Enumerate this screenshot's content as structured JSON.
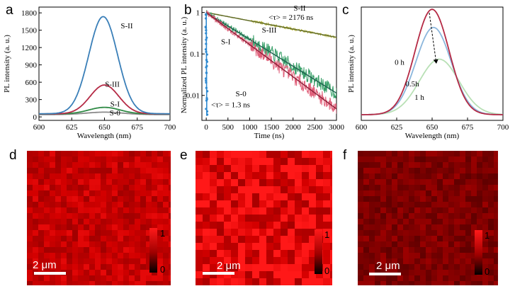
{
  "chart_data": [
    {
      "panel": "a",
      "type": "line",
      "xlabel": "Wavelength (nm)",
      "ylabel": "PL intensity (a. u.)",
      "xlim": [
        600,
        700
      ],
      "ylim": [
        -60,
        1900
      ],
      "xticks": [
        600,
        625,
        650,
        675,
        700
      ],
      "yticks": [
        0,
        300,
        600,
        900,
        1200,
        1500,
        1800
      ],
      "series": [
        {
          "name": "S-II",
          "color": "#3a7fb8",
          "peak_x": 649,
          "peak_y": 1680,
          "sigma": 11,
          "baseline": 55
        },
        {
          "name": "S-III",
          "color": "#b52a45",
          "peak_x": 650,
          "peak_y": 500,
          "sigma": 11,
          "baseline": 52
        },
        {
          "name": "S-I",
          "color": "#2f8a45",
          "peak_x": 650,
          "peak_y": 115,
          "sigma": 12,
          "baseline": 50
        },
        {
          "name": "S-0",
          "color": "#8a8a8a",
          "peak_x": 650,
          "peak_y": 42,
          "sigma": 14,
          "baseline": 40
        }
      ],
      "labels": [
        {
          "text": "S-II",
          "x": 667,
          "y": 1530
        },
        {
          "text": "S-III",
          "x": 656,
          "y": 520
        },
        {
          "text": "S-I",
          "x": 658,
          "y": 180
        },
        {
          "text": "S-0",
          "x": 658,
          "y": 25
        }
      ]
    },
    {
      "panel": "b",
      "type": "line",
      "xlabel": "Time (ns)",
      "ylabel": "Normalized PL intensity (a. u.)",
      "xlim": [
        -100,
        3000
      ],
      "ylim": [
        0.0025,
        1.35
      ],
      "yscale": "log",
      "xticks": [
        0,
        500,
        1000,
        1500,
        2000,
        2500,
        3000
      ],
      "yticks": [
        1,
        0.1,
        0.01
      ],
      "ytick_labels": [
        "1",
        "0.1",
        "0.01"
      ],
      "series": [
        {
          "name": "S-II",
          "color": "#b3b030",
          "fit_color": "#5e6a2a",
          "tau_ns": 2176
        },
        {
          "name": "S-III",
          "color": "#3aa06a",
          "fit_color": "#1e5f4e",
          "tau_ns": 670
        },
        {
          "name": "S-I",
          "color": "#e0607a",
          "fit_color": "#8a1e36",
          "tau_ns": 560
        },
        {
          "name": "S-0",
          "color": "#2f8ad0",
          "fit_color": "#1d4f86",
          "tau_ns": 1.3
        }
      ],
      "labels": [
        {
          "text": "S-II",
          "x": 2150,
          "y": 1.1
        },
        {
          "text": "S-III",
          "x": 1450,
          "y": 0.33
        },
        {
          "text": "S-I",
          "x": 450,
          "y": 0.17
        },
        {
          "text": "S-0",
          "x": 800,
          "y": 0.0095
        }
      ],
      "annotations": [
        {
          "text": "<τ> = 2176 ns",
          "x": 1950,
          "y": 0.66
        },
        {
          "text": "<τ> = 1.3 ns",
          "x": 560,
          "y": 0.0052
        }
      ]
    },
    {
      "panel": "c",
      "type": "line",
      "xlabel": "Wavelength (nm)",
      "ylabel": "PL intensity (a. u.)",
      "xlim": [
        600,
        700
      ],
      "ylim": [
        0,
        1
      ],
      "xticks": [
        600,
        625,
        650,
        675,
        700
      ],
      "series": [
        {
          "name": "0 h",
          "color": "#b52a45",
          "peak_x": 650,
          "peak_y": 0.93,
          "sigma": 12,
          "baseline": 0.05
        },
        {
          "name": "0.5h",
          "color": "#8bb6dc",
          "peak_x": 651,
          "peak_y": 0.77,
          "sigma": 12.5,
          "baseline": 0.05
        },
        {
          "name": "1 h",
          "color": "#b8e0b5",
          "peak_x": 655,
          "peak_y": 0.49,
          "sigma": 14,
          "baseline": 0.05
        }
      ],
      "labels": [
        {
          "text": "0 h",
          "x": 627,
          "y": 0.49
        },
        {
          "text": "0.5h",
          "x": 636,
          "y": 0.3
        },
        {
          "text": "1 h",
          "x": 641,
          "y": 0.18
        }
      ],
      "arrow": {
        "from": [
          648,
          0.95
        ],
        "to": [
          653,
          0.5
        ]
      }
    }
  ],
  "maps": [
    {
      "panel": "d",
      "scale_bar": "2 μm",
      "colorbar_max": "1",
      "colorbar_min": "0",
      "brightness": 0.72,
      "contrast": 0.16,
      "grain": 8
    },
    {
      "panel": "e",
      "scale_bar": "2 μm",
      "colorbar_max": "1",
      "colorbar_min": "0",
      "brightness": 0.88,
      "contrast": 0.3,
      "grain": 10
    },
    {
      "panel": "f",
      "scale_bar": "2 μm",
      "colorbar_max": "1",
      "colorbar_min": "0",
      "brightness": 0.4,
      "contrast": 0.14,
      "grain": 8
    }
  ],
  "colors": {
    "map_red": "#ff1010",
    "colorbar_top": "#ff1a1a",
    "colorbar_bottom": "#000000"
  }
}
